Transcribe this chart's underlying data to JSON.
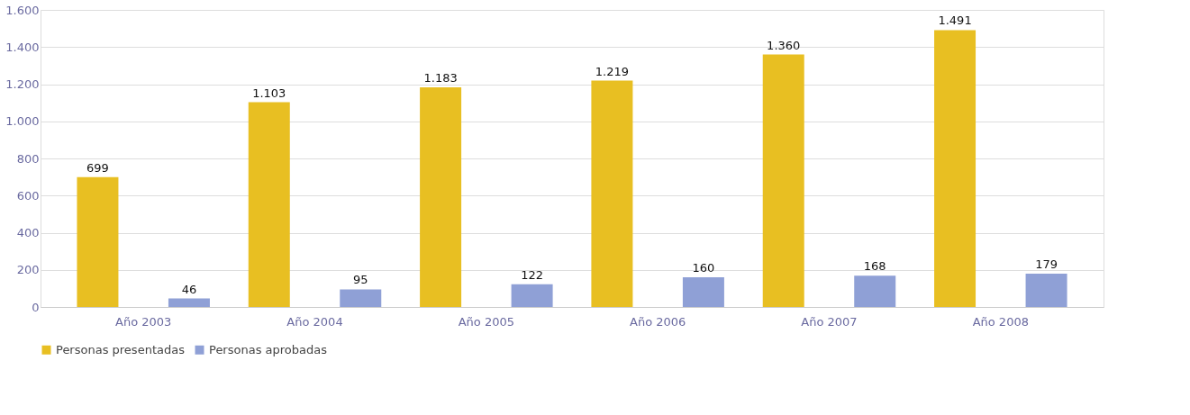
{
  "chart_data": {
    "type": "bar",
    "categories": [
      "Año 2003",
      "Año 2004",
      "Año 2005",
      "Año 2006",
      "Año 2007",
      "Año 2008"
    ],
    "series": [
      {
        "name": "Personas presentadas",
        "color": "#e8bf22",
        "values": [
          699,
          1103,
          1183,
          1219,
          1360,
          1491
        ],
        "value_labels": [
          "699",
          "1.103",
          "1.183",
          "1.219",
          "1.360",
          "1.491"
        ]
      },
      {
        "name": "Personas aprobadas",
        "color": "#8fa0d6",
        "values": [
          46,
          95,
          122,
          160,
          168,
          179
        ],
        "value_labels": [
          "46",
          "95",
          "122",
          "160",
          "168",
          "179"
        ]
      }
    ],
    "ylim": [
      0,
      1600
    ],
    "yticks": [
      0,
      200,
      400,
      600,
      800,
      {
        "value": 1000,
        "label": "1.000"
      },
      {
        "value": 1200,
        "label": "1.200"
      },
      {
        "value": 1400,
        "label": "1.400"
      },
      {
        "value": 1600,
        "label": "1.600"
      }
    ],
    "grid": "y",
    "legend": "bottom"
  }
}
